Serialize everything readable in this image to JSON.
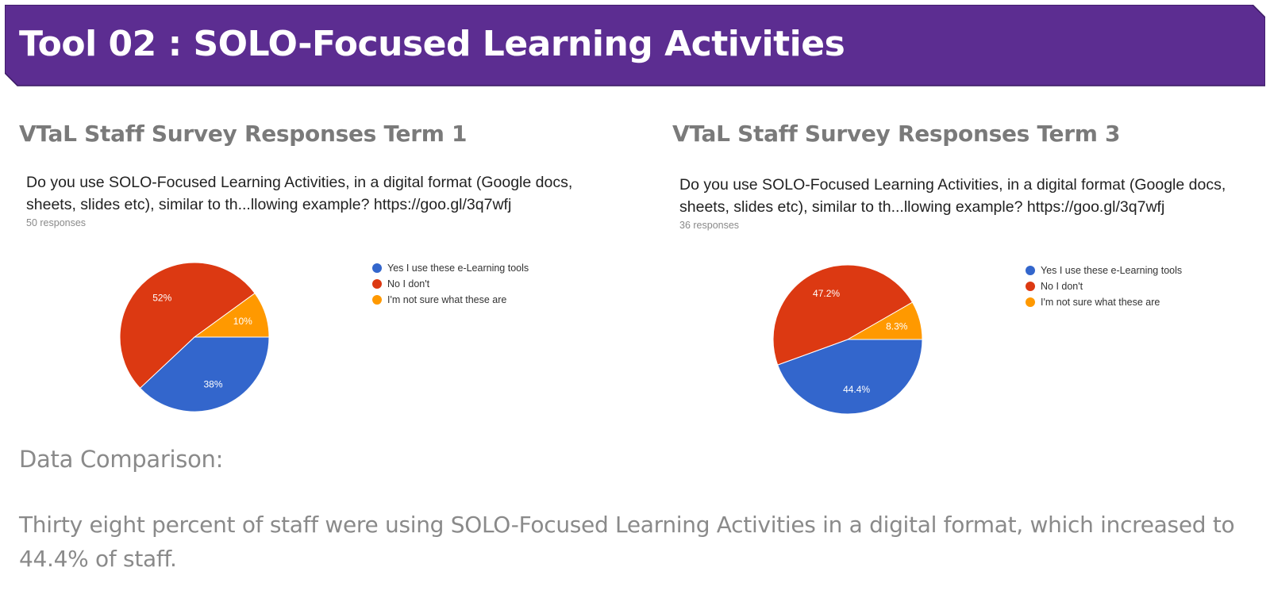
{
  "banner": {
    "title": "Tool 02 : SOLO-Focused Learning Activities",
    "color": "#5c2d91"
  },
  "chart_data": [
    {
      "type": "pie",
      "section_title": "VTaL Staff Survey Responses Term 1",
      "title": "Do you use SOLO-Focused Learning Activities, in a digital format (Google docs, sheets, slides etc), similar to th...llowing example?  https://goo.gl/3q7wfj",
      "responses": "50 responses",
      "legend_position": "right",
      "slices": [
        {
          "name": "Yes I use these e-Learning tools",
          "value": 38,
          "label": "38%",
          "color": "#3366cc"
        },
        {
          "name": "No I don't",
          "value": 52,
          "label": "52%",
          "color": "#dc3912"
        },
        {
          "name": "I'm not sure what these are",
          "value": 10,
          "label": "10%",
          "color": "#ff9900"
        }
      ]
    },
    {
      "type": "pie",
      "section_title": "VTaL Staff Survey Responses Term 3",
      "title": "Do you use SOLO-Focused Learning Activities, in a digital format (Google docs, sheets, slides etc), similar to th...llowing example?  https://goo.gl/3q7wfj",
      "responses": "36 responses",
      "legend_position": "right",
      "slices": [
        {
          "name": "Yes I use these e-Learning tools",
          "value": 44.4,
          "label": "44.4%",
          "color": "#3366cc"
        },
        {
          "name": "No I don't",
          "value": 47.2,
          "label": "47.2%",
          "color": "#dc3912"
        },
        {
          "name": "I'm not sure what these are",
          "value": 8.3,
          "label": "8.3%",
          "color": "#ff9900"
        }
      ]
    }
  ],
  "comparison": {
    "heading": "Data Comparison:",
    "body": "Thirty eight percent of staff were using SOLO-Focused Learning Activities in a digital format, which increased to 44.4% of staff."
  }
}
